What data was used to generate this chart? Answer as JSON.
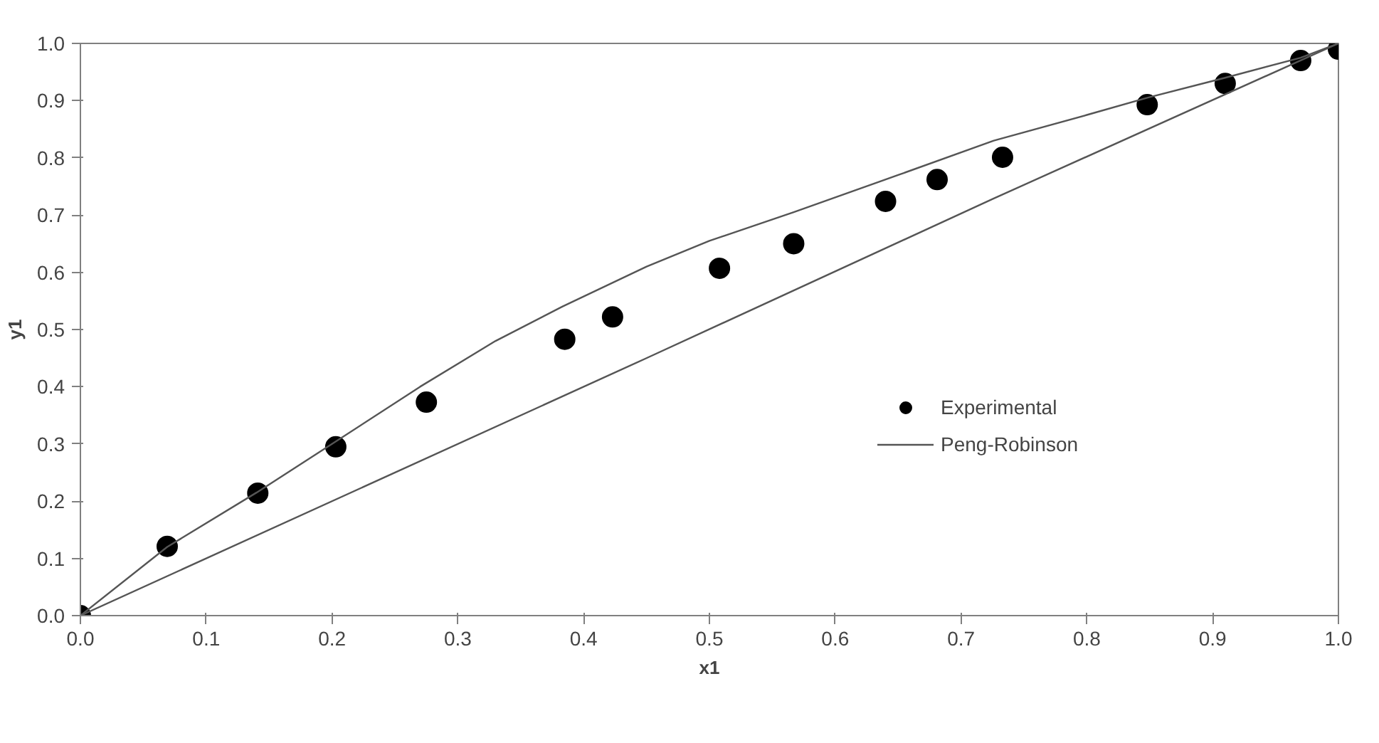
{
  "chart_data": {
    "type": "scatter",
    "xlabel": "x1",
    "ylabel": "y1",
    "xlim": [
      0,
      1
    ],
    "ylim": [
      0,
      1
    ],
    "xticks": [
      {
        "value": 0,
        "label": "0.0"
      },
      0.1,
      0.2,
      0.3,
      0.4,
      0.5,
      0.6,
      0.7,
      0.8,
      0.9,
      {
        "value": 1,
        "label": "1.0"
      }
    ],
    "yticks": [
      {
        "value": 0,
        "label": "0.0"
      },
      0.1,
      0.2,
      0.3,
      0.4,
      0.5,
      0.6,
      0.7,
      0.8,
      0.9,
      {
        "value": 1,
        "label": "1.0"
      }
    ],
    "grid": false,
    "legend": "bottom right",
    "series": [
      {
        "name": "Experimental",
        "marker": "circle",
        "color": "#000000",
        "x": [
          0,
          0.069,
          0.141,
          0.203,
          0.275,
          0.385,
          0.423,
          0.508,
          0.567,
          0.64,
          0.681,
          0.733,
          0.848,
          0.91,
          0.97,
          1.0
        ],
        "values": [
          0,
          0.121,
          0.214,
          0.295,
          0.373,
          0.483,
          0.522,
          0.607,
          0.65,
          0.724,
          0.762,
          0.801,
          0.893,
          0.93,
          0.97,
          0.99
        ]
      },
      {
        "name": "Peng-Robinson",
        "type": "line",
        "color": "#555555",
        "x": [
          0,
          0.069,
          0.14,
          0.2,
          0.27,
          0.33,
          0.383,
          0.45,
          0.5,
          0.567,
          0.65,
          0.726,
          0.8,
          0.848,
          0.91,
          0.97,
          1.0
        ],
        "values": [
          0,
          0.12,
          0.215,
          0.3,
          0.4,
          0.48,
          0.54,
          0.61,
          0.655,
          0.705,
          0.77,
          0.83,
          0.875,
          0.905,
          0.94,
          0.975,
          1.0
        ]
      },
      {
        "type": "line",
        "color": "#555555",
        "x": [
          0,
          0.449,
          0.726,
          1.0
        ],
        "values": [
          0,
          0.449,
          0.729,
          1.0
        ]
      }
    ]
  }
}
